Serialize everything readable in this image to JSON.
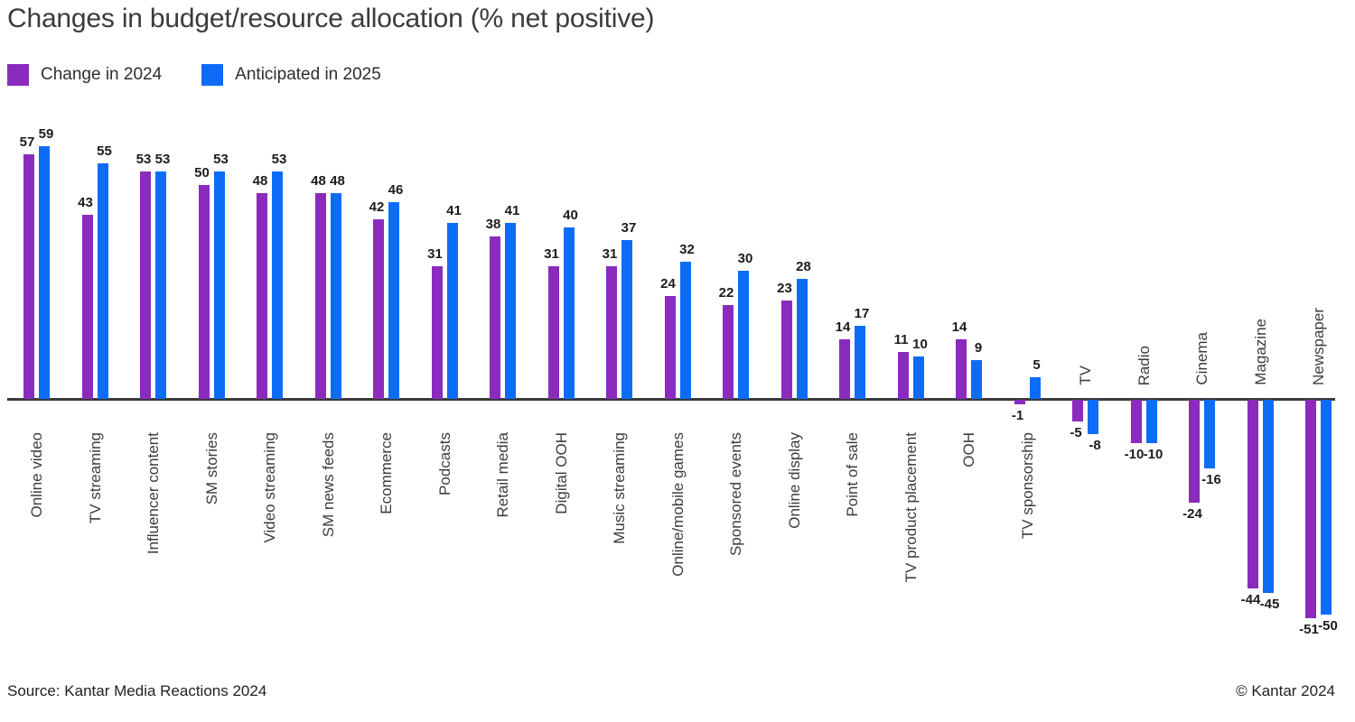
{
  "title": "Changes in budget/resource allocation (% net positive)",
  "legend": [
    {
      "label": "Change in 2024",
      "color": "#8A2BBE"
    },
    {
      "label": "Anticipated in 2025",
      "color": "#0D6CF6"
    }
  ],
  "footer": {
    "source": "Source: Kantar Media Reactions 2024",
    "copyright": "© Kantar 2024"
  },
  "colors": {
    "series_2024": "#8A2BBE",
    "series_2025": "#0D6CF6",
    "axis": "#3a3a3a",
    "text": "#3c3c3c"
  },
  "chart_data": {
    "type": "bar",
    "title": "Changes in budget/resource allocation (% net positive)",
    "xlabel": "",
    "ylabel": "",
    "ylim": [
      -51,
      59
    ],
    "grid": false,
    "legend_position": "top-left",
    "value_labels": true,
    "baseline": 0,
    "categories": [
      "Online video",
      "TV streaming",
      "Influencer content",
      "SM stories",
      "Video streaming",
      "SM news feeds",
      "Ecommerce",
      "Podcasts",
      "Retail media",
      "Digital OOH",
      "Music streaming",
      "Online/mobile games",
      "Sponsored events",
      "Online display",
      "Point of sale",
      "TV product placement",
      "OOH",
      "TV sponsorship",
      "TV",
      "Radio",
      "Cinema",
      "Magazine",
      "Newspaper"
    ],
    "series": [
      {
        "name": "Change in 2024",
        "color": "#8A2BBE",
        "values": [
          57,
          43,
          53,
          50,
          48,
          48,
          42,
          31,
          38,
          31,
          31,
          24,
          22,
          23,
          14,
          11,
          14,
          -1,
          -5,
          -10,
          -24,
          -44,
          -51
        ]
      },
      {
        "name": "Anticipated in 2025",
        "color": "#0D6CF6",
        "values": [
          59,
          55,
          53,
          53,
          53,
          48,
          46,
          41,
          41,
          40,
          37,
          32,
          30,
          28,
          17,
          10,
          9,
          5,
          -8,
          -10,
          -16,
          -45,
          -50
        ]
      }
    ]
  }
}
